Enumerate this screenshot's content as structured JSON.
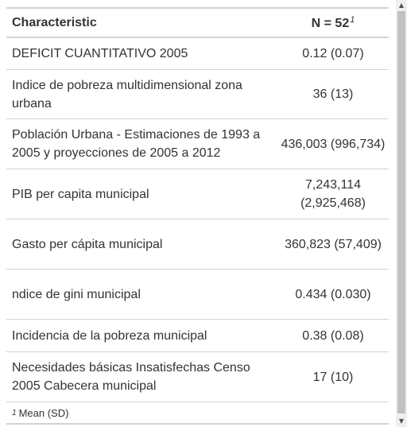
{
  "table": {
    "header": {
      "characteristic": "Characteristic",
      "n_label": "N = 52",
      "n_footnote_mark": "1"
    },
    "rows": [
      {
        "label": "DEFICIT CUANTITATIVO 2005",
        "value": "0.12 (0.07)"
      },
      {
        "label": "Indice de pobreza multidimensional zona urbana",
        "value": "36 (13)"
      },
      {
        "label": "Población Urbana - Estimaciones de 1993 a 2005 y proyecciones de 2005 a 2012",
        "value": "436,003 (996,734)"
      },
      {
        "label": "PIB per capita municipal",
        "value": "7,243,114 (2,925,468)"
      },
      {
        "label": "Gasto per cápita municipal",
        "value": "360,823 (57,409)"
      },
      {
        "label": "ndice de gini municipal",
        "value": "0.434 (0.030)"
      },
      {
        "label": "Incidencia de la pobreza municipal",
        "value": "0.38 (0.08)"
      },
      {
        "label": "Necesidades básicas Insatisfechas Censo 2005 Cabecera municipal",
        "value": "17 (10)"
      }
    ],
    "footnote": {
      "mark": "1",
      "text": "Mean (SD)"
    }
  },
  "scrollbar": {
    "up_arrow_icon": "triangle-up",
    "down_arrow_icon": "triangle-down"
  }
}
